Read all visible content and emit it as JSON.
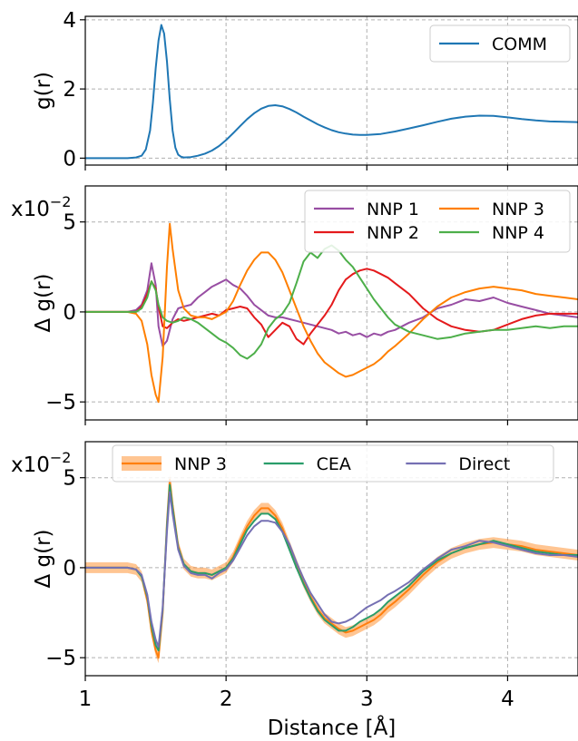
{
  "chart_data": [
    {
      "type": "line",
      "ylabel": "g(r)",
      "xlim": [
        1,
        4.5
      ],
      "ylim": [
        -0.2,
        4.1
      ],
      "yticks": [
        "0",
        "2",
        "4"
      ],
      "grid": true,
      "legend_position": "top-right",
      "series": [
        {
          "name": "COMM",
          "color": "#1f77b4",
          "x": [
            1.0,
            1.3,
            1.36,
            1.4,
            1.43,
            1.46,
            1.48,
            1.5,
            1.52,
            1.54,
            1.56,
            1.58,
            1.6,
            1.62,
            1.64,
            1.66,
            1.68,
            1.7,
            1.75,
            1.8,
            1.85,
            1.9,
            1.95,
            2.0,
            2.05,
            2.1,
            2.15,
            2.2,
            2.25,
            2.3,
            2.35,
            2.4,
            2.45,
            2.5,
            2.55,
            2.6,
            2.65,
            2.7,
            2.75,
            2.8,
            2.85,
            2.9,
            2.95,
            3.0,
            3.1,
            3.2,
            3.3,
            3.4,
            3.5,
            3.6,
            3.7,
            3.8,
            3.9,
            4.0,
            4.1,
            4.2,
            4.3,
            4.4,
            4.5
          ],
          "y": [
            0.0,
            0.0,
            0.02,
            0.07,
            0.25,
            0.8,
            1.6,
            2.6,
            3.4,
            3.85,
            3.6,
            2.8,
            1.7,
            0.8,
            0.3,
            0.1,
            0.04,
            0.02,
            0.03,
            0.07,
            0.13,
            0.22,
            0.35,
            0.52,
            0.72,
            0.93,
            1.13,
            1.3,
            1.43,
            1.51,
            1.53,
            1.5,
            1.42,
            1.32,
            1.2,
            1.09,
            0.98,
            0.89,
            0.81,
            0.75,
            0.71,
            0.68,
            0.67,
            0.67,
            0.7,
            0.77,
            0.86,
            0.95,
            1.05,
            1.14,
            1.2,
            1.23,
            1.22,
            1.18,
            1.13,
            1.09,
            1.06,
            1.05,
            1.04
          ]
        }
      ]
    },
    {
      "type": "line",
      "ylabel": "Δ g(r)",
      "scale_label": "x10",
      "scale_exponent": "−2",
      "xlim": [
        1,
        4.5
      ],
      "ylim": [
        -6,
        7
      ],
      "yticks": [
        "−5",
        "0",
        "5"
      ],
      "grid": true,
      "legend_position": "top-right",
      "legend_columns": 2,
      "series": [
        {
          "name": "NNP 1",
          "color": "#984ea3",
          "x": [
            1.0,
            1.3,
            1.36,
            1.4,
            1.44,
            1.47,
            1.5,
            1.52,
            1.55,
            1.58,
            1.62,
            1.66,
            1.7,
            1.75,
            1.8,
            1.85,
            1.9,
            1.95,
            2.0,
            2.05,
            2.1,
            2.15,
            2.2,
            2.25,
            2.3,
            2.35,
            2.4,
            2.45,
            2.5,
            2.55,
            2.6,
            2.65,
            2.7,
            2.75,
            2.8,
            2.85,
            2.9,
            2.95,
            3.0,
            3.05,
            3.1,
            3.15,
            3.2,
            3.3,
            3.4,
            3.5,
            3.6,
            3.7,
            3.8,
            3.9,
            4.0,
            4.1,
            4.2,
            4.3,
            4.4,
            4.5
          ],
          "y": [
            0.0,
            0.0,
            0.1,
            0.4,
            1.2,
            2.7,
            1.5,
            -0.8,
            -1.9,
            -1.6,
            -0.4,
            0.2,
            0.3,
            0.4,
            0.8,
            1.1,
            1.4,
            1.6,
            1.8,
            1.5,
            1.3,
            0.9,
            0.4,
            0.1,
            -0.2,
            -0.3,
            -0.3,
            -0.4,
            -0.5,
            -0.6,
            -0.7,
            -0.8,
            -0.9,
            -1.0,
            -1.2,
            -1.1,
            -1.3,
            -1.2,
            -1.4,
            -1.2,
            -1.3,
            -1.1,
            -1.0,
            -0.6,
            -0.3,
            0.2,
            0.4,
            0.7,
            0.6,
            0.8,
            0.5,
            0.3,
            0.1,
            -0.1,
            -0.2,
            -0.3
          ]
        },
        {
          "name": "NNP 2",
          "color": "#e41a1c",
          "x": [
            1.0,
            1.3,
            1.36,
            1.4,
            1.44,
            1.47,
            1.5,
            1.52,
            1.55,
            1.58,
            1.62,
            1.66,
            1.7,
            1.75,
            1.8,
            1.85,
            1.9,
            1.95,
            2.0,
            2.05,
            2.1,
            2.15,
            2.2,
            2.25,
            2.3,
            2.35,
            2.4,
            2.45,
            2.5,
            2.55,
            2.6,
            2.65,
            2.7,
            2.75,
            2.8,
            2.85,
            2.9,
            2.95,
            3.0,
            3.05,
            3.1,
            3.15,
            3.2,
            3.3,
            3.4,
            3.5,
            3.6,
            3.7,
            3.8,
            3.9,
            4.0,
            4.1,
            4.2,
            4.3,
            4.4,
            4.5
          ],
          "y": [
            0.0,
            0.0,
            0.0,
            0.3,
            1.0,
            1.7,
            1.3,
            0.3,
            -0.8,
            -0.9,
            -0.6,
            -0.4,
            -0.5,
            -0.4,
            -0.3,
            -0.2,
            -0.1,
            -0.2,
            0.1,
            0.2,
            0.3,
            0.2,
            -0.3,
            -0.7,
            -1.4,
            -1.0,
            -0.6,
            -0.8,
            -1.5,
            -1.8,
            -1.2,
            -0.7,
            -0.2,
            0.4,
            1.2,
            1.8,
            2.1,
            2.3,
            2.4,
            2.3,
            2.1,
            1.9,
            1.6,
            1.0,
            0.2,
            -0.4,
            -0.8,
            -1.0,
            -1.1,
            -1.0,
            -0.7,
            -0.4,
            -0.2,
            -0.1,
            -0.1,
            -0.1
          ]
        },
        {
          "name": "NNP 3",
          "color": "#ff7f00",
          "x": [
            1.0,
            1.3,
            1.36,
            1.4,
            1.44,
            1.47,
            1.5,
            1.52,
            1.55,
            1.58,
            1.6,
            1.62,
            1.66,
            1.7,
            1.75,
            1.8,
            1.85,
            1.9,
            1.95,
            2.0,
            2.05,
            2.1,
            2.15,
            2.2,
            2.25,
            2.3,
            2.35,
            2.4,
            2.45,
            2.5,
            2.55,
            2.6,
            2.65,
            2.7,
            2.75,
            2.8,
            2.85,
            2.9,
            2.95,
            3.0,
            3.05,
            3.1,
            3.15,
            3.2,
            3.3,
            3.4,
            3.5,
            3.6,
            3.7,
            3.8,
            3.9,
            4.0,
            4.1,
            4.2,
            4.3,
            4.4,
            4.5
          ],
          "y": [
            0.0,
            0.0,
            -0.1,
            -0.5,
            -1.8,
            -3.5,
            -4.6,
            -5.0,
            -2.5,
            2.5,
            4.9,
            3.5,
            1.2,
            0.2,
            -0.2,
            -0.3,
            -0.3,
            -0.4,
            -0.2,
            0.0,
            0.6,
            1.5,
            2.3,
            2.9,
            3.3,
            3.3,
            2.9,
            2.2,
            1.2,
            0.2,
            -0.8,
            -1.6,
            -2.3,
            -2.8,
            -3.1,
            -3.4,
            -3.6,
            -3.5,
            -3.3,
            -3.1,
            -2.9,
            -2.6,
            -2.2,
            -1.9,
            -1.2,
            -0.4,
            0.3,
            0.8,
            1.1,
            1.3,
            1.4,
            1.3,
            1.2,
            1.0,
            0.9,
            0.8,
            0.7
          ]
        },
        {
          "name": "NNP 4",
          "color": "#4daf4a",
          "x": [
            1.0,
            1.3,
            1.36,
            1.4,
            1.44,
            1.47,
            1.5,
            1.52,
            1.55,
            1.58,
            1.62,
            1.66,
            1.7,
            1.75,
            1.8,
            1.85,
            1.9,
            1.95,
            2.0,
            2.05,
            2.1,
            2.15,
            2.2,
            2.25,
            2.3,
            2.35,
            2.4,
            2.45,
            2.5,
            2.55,
            2.6,
            2.65,
            2.7,
            2.75,
            2.8,
            2.85,
            2.9,
            2.95,
            3.0,
            3.05,
            3.1,
            3.15,
            3.2,
            3.3,
            3.4,
            3.5,
            3.6,
            3.7,
            3.8,
            3.9,
            4.0,
            4.1,
            4.2,
            4.3,
            4.4,
            4.5
          ],
          "y": [
            0.0,
            0.0,
            0.0,
            0.2,
            0.8,
            1.7,
            1.2,
            0.4,
            -0.3,
            -0.5,
            -0.6,
            -0.5,
            -0.3,
            -0.4,
            -0.6,
            -0.9,
            -1.2,
            -1.5,
            -1.7,
            -2.0,
            -2.4,
            -2.6,
            -2.3,
            -1.8,
            -0.9,
            -0.4,
            -0.1,
            0.5,
            1.6,
            2.8,
            3.3,
            3.0,
            3.5,
            3.7,
            3.4,
            2.9,
            2.5,
            1.9,
            1.3,
            0.7,
            0.2,
            -0.3,
            -0.7,
            -1.1,
            -1.3,
            -1.5,
            -1.4,
            -1.2,
            -1.1,
            -1.0,
            -1.0,
            -0.9,
            -0.8,
            -0.9,
            -0.8,
            -0.8
          ]
        }
      ]
    },
    {
      "type": "line",
      "ylabel": "Δ g(r)",
      "xlabel": "Distance [Å]",
      "scale_label": "x10",
      "scale_exponent": "−2",
      "xlim": [
        1,
        4.5
      ],
      "ylim": [
        -6,
        7
      ],
      "xticks": [
        "1",
        "2",
        "3",
        "4"
      ],
      "yticks": [
        "−5",
        "0",
        "5"
      ],
      "grid": true,
      "legend_position": "top",
      "legend_columns": 3,
      "series": [
        {
          "name": "NNP 3",
          "color": "#ff7f0e",
          "band": 0.3,
          "x": [
            1.0,
            1.3,
            1.36,
            1.4,
            1.44,
            1.47,
            1.5,
            1.52,
            1.55,
            1.58,
            1.6,
            1.62,
            1.66,
            1.7,
            1.75,
            1.8,
            1.85,
            1.9,
            1.95,
            2.0,
            2.05,
            2.1,
            2.15,
            2.2,
            2.25,
            2.3,
            2.35,
            2.4,
            2.45,
            2.5,
            2.55,
            2.6,
            2.65,
            2.7,
            2.75,
            2.8,
            2.85,
            2.9,
            2.95,
            3.0,
            3.05,
            3.1,
            3.15,
            3.2,
            3.3,
            3.4,
            3.5,
            3.6,
            3.7,
            3.8,
            3.9,
            4.0,
            4.1,
            4.2,
            4.3,
            4.4,
            4.5
          ],
          "y": [
            0.0,
            0.0,
            -0.1,
            -0.5,
            -1.8,
            -3.5,
            -4.6,
            -5.0,
            -2.5,
            2.5,
            4.9,
            3.5,
            1.2,
            0.2,
            -0.2,
            -0.3,
            -0.3,
            -0.4,
            -0.2,
            0.0,
            0.6,
            1.5,
            2.3,
            2.9,
            3.3,
            3.3,
            2.9,
            2.2,
            1.2,
            0.2,
            -0.8,
            -1.6,
            -2.3,
            -2.8,
            -3.1,
            -3.4,
            -3.6,
            -3.5,
            -3.3,
            -3.1,
            -2.9,
            -2.6,
            -2.2,
            -1.9,
            -1.2,
            -0.4,
            0.3,
            0.8,
            1.1,
            1.3,
            1.4,
            1.3,
            1.2,
            1.0,
            0.9,
            0.8,
            0.7
          ]
        },
        {
          "name": "CEA",
          "color": "#2a9d6a",
          "x": [
            1.0,
            1.3,
            1.36,
            1.4,
            1.44,
            1.47,
            1.5,
            1.52,
            1.55,
            1.58,
            1.6,
            1.62,
            1.66,
            1.7,
            1.75,
            1.8,
            1.85,
            1.9,
            1.95,
            2.0,
            2.05,
            2.1,
            2.15,
            2.2,
            2.25,
            2.3,
            2.35,
            2.4,
            2.45,
            2.5,
            2.55,
            2.6,
            2.65,
            2.7,
            2.75,
            2.8,
            2.85,
            2.9,
            2.95,
            3.0,
            3.05,
            3.1,
            3.15,
            3.2,
            3.3,
            3.4,
            3.5,
            3.6,
            3.7,
            3.8,
            3.9,
            4.0,
            4.1,
            4.2,
            4.3,
            4.4,
            4.5
          ],
          "y": [
            0.0,
            0.0,
            -0.1,
            -0.5,
            -1.6,
            -3.2,
            -4.3,
            -4.6,
            -2.3,
            2.3,
            4.6,
            3.3,
            1.1,
            0.2,
            -0.2,
            -0.3,
            -0.3,
            -0.4,
            -0.2,
            0.0,
            0.5,
            1.3,
            2.1,
            2.6,
            3.0,
            3.0,
            2.7,
            2.0,
            1.0,
            0.0,
            -0.9,
            -1.7,
            -2.4,
            -2.9,
            -3.2,
            -3.5,
            -3.5,
            -3.3,
            -3.0,
            -2.8,
            -2.6,
            -2.3,
            -1.9,
            -1.6,
            -1.0,
            -0.2,
            0.4,
            0.8,
            1.1,
            1.3,
            1.5,
            1.3,
            1.1,
            0.9,
            0.8,
            0.7,
            0.7
          ]
        },
        {
          "name": "Direct",
          "color": "#7570b3",
          "x": [
            1.0,
            1.3,
            1.36,
            1.4,
            1.44,
            1.47,
            1.5,
            1.52,
            1.55,
            1.58,
            1.6,
            1.62,
            1.66,
            1.7,
            1.75,
            1.8,
            1.85,
            1.9,
            1.95,
            2.0,
            2.05,
            2.1,
            2.15,
            2.2,
            2.25,
            2.3,
            2.35,
            2.4,
            2.45,
            2.5,
            2.55,
            2.6,
            2.65,
            2.7,
            2.75,
            2.8,
            2.85,
            2.9,
            2.95,
            3.0,
            3.05,
            3.1,
            3.15,
            3.2,
            3.3,
            3.4,
            3.5,
            3.6,
            3.7,
            3.8,
            3.9,
            4.0,
            4.1,
            4.2,
            4.3,
            4.4,
            4.5
          ],
          "y": [
            0.0,
            0.0,
            -0.1,
            -0.4,
            -1.5,
            -3.0,
            -4.0,
            -4.4,
            -2.2,
            2.0,
            4.2,
            3.0,
            1.0,
            0.1,
            -0.3,
            -0.4,
            -0.4,
            -0.6,
            -0.3,
            -0.1,
            0.4,
            1.1,
            1.8,
            2.3,
            2.6,
            2.6,
            2.5,
            2.0,
            1.3,
            0.3,
            -0.6,
            -1.4,
            -2.0,
            -2.6,
            -3.0,
            -3.1,
            -3.0,
            -2.8,
            -2.5,
            -2.2,
            -2.0,
            -1.8,
            -1.5,
            -1.3,
            -0.8,
            -0.1,
            0.5,
            1.0,
            1.2,
            1.5,
            1.4,
            1.2,
            1.0,
            0.8,
            0.7,
            0.7,
            0.6
          ]
        }
      ]
    }
  ]
}
